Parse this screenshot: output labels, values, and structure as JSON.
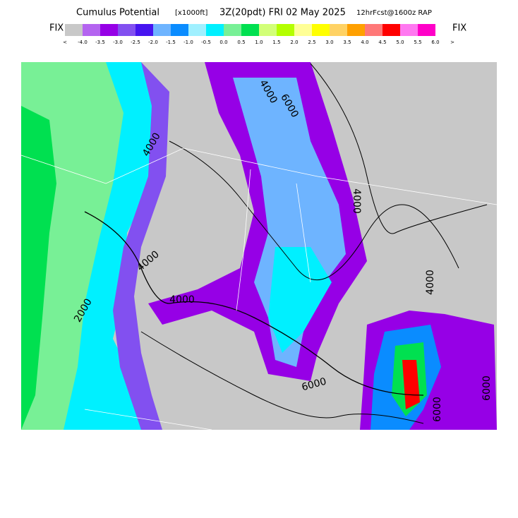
{
  "header": {
    "title": "Cumulus Potential",
    "units": "[x1000ft]",
    "valid": "3Z(20pdt) FRI 02 May 2025",
    "forecast": "12hrFcst@1600z RAP"
  },
  "legend": {
    "left_label": "FIX",
    "right_label": "FIX",
    "low_end": "<",
    "high_end": ">",
    "labels": [
      "-4.0",
      "-3.5",
      "-3.0",
      "-2.5",
      "-2.0",
      "-1.5",
      "-1.0",
      "-0.5",
      "0.0",
      "0.5",
      "1.0",
      "1.5",
      "2.0",
      "2.5",
      "3.0",
      "3.5",
      "4.0",
      "4.5",
      "5.0",
      "5.5",
      "6.0"
    ],
    "colors": [
      "#c8c8c8",
      "#b464f0",
      "#9600e6",
      "#8250f0",
      "#4614f0",
      "#6eb4ff",
      "#0a8cff",
      "#a0f0ff",
      "#00f0ff",
      "#78f096",
      "#00e050",
      "#d2ff78",
      "#b4ff00",
      "#ffff96",
      "#ffff00",
      "#ffd264",
      "#ffa000",
      "#ff7878",
      "#ff0000",
      "#ff78f0",
      "#ff00c8"
    ]
  },
  "map": {
    "contour_labels": [
      "4000",
      "4000",
      "4000",
      "4000",
      "4000",
      "6000",
      "6000",
      "6000",
      "6000",
      "2000",
      "4000"
    ]
  }
}
